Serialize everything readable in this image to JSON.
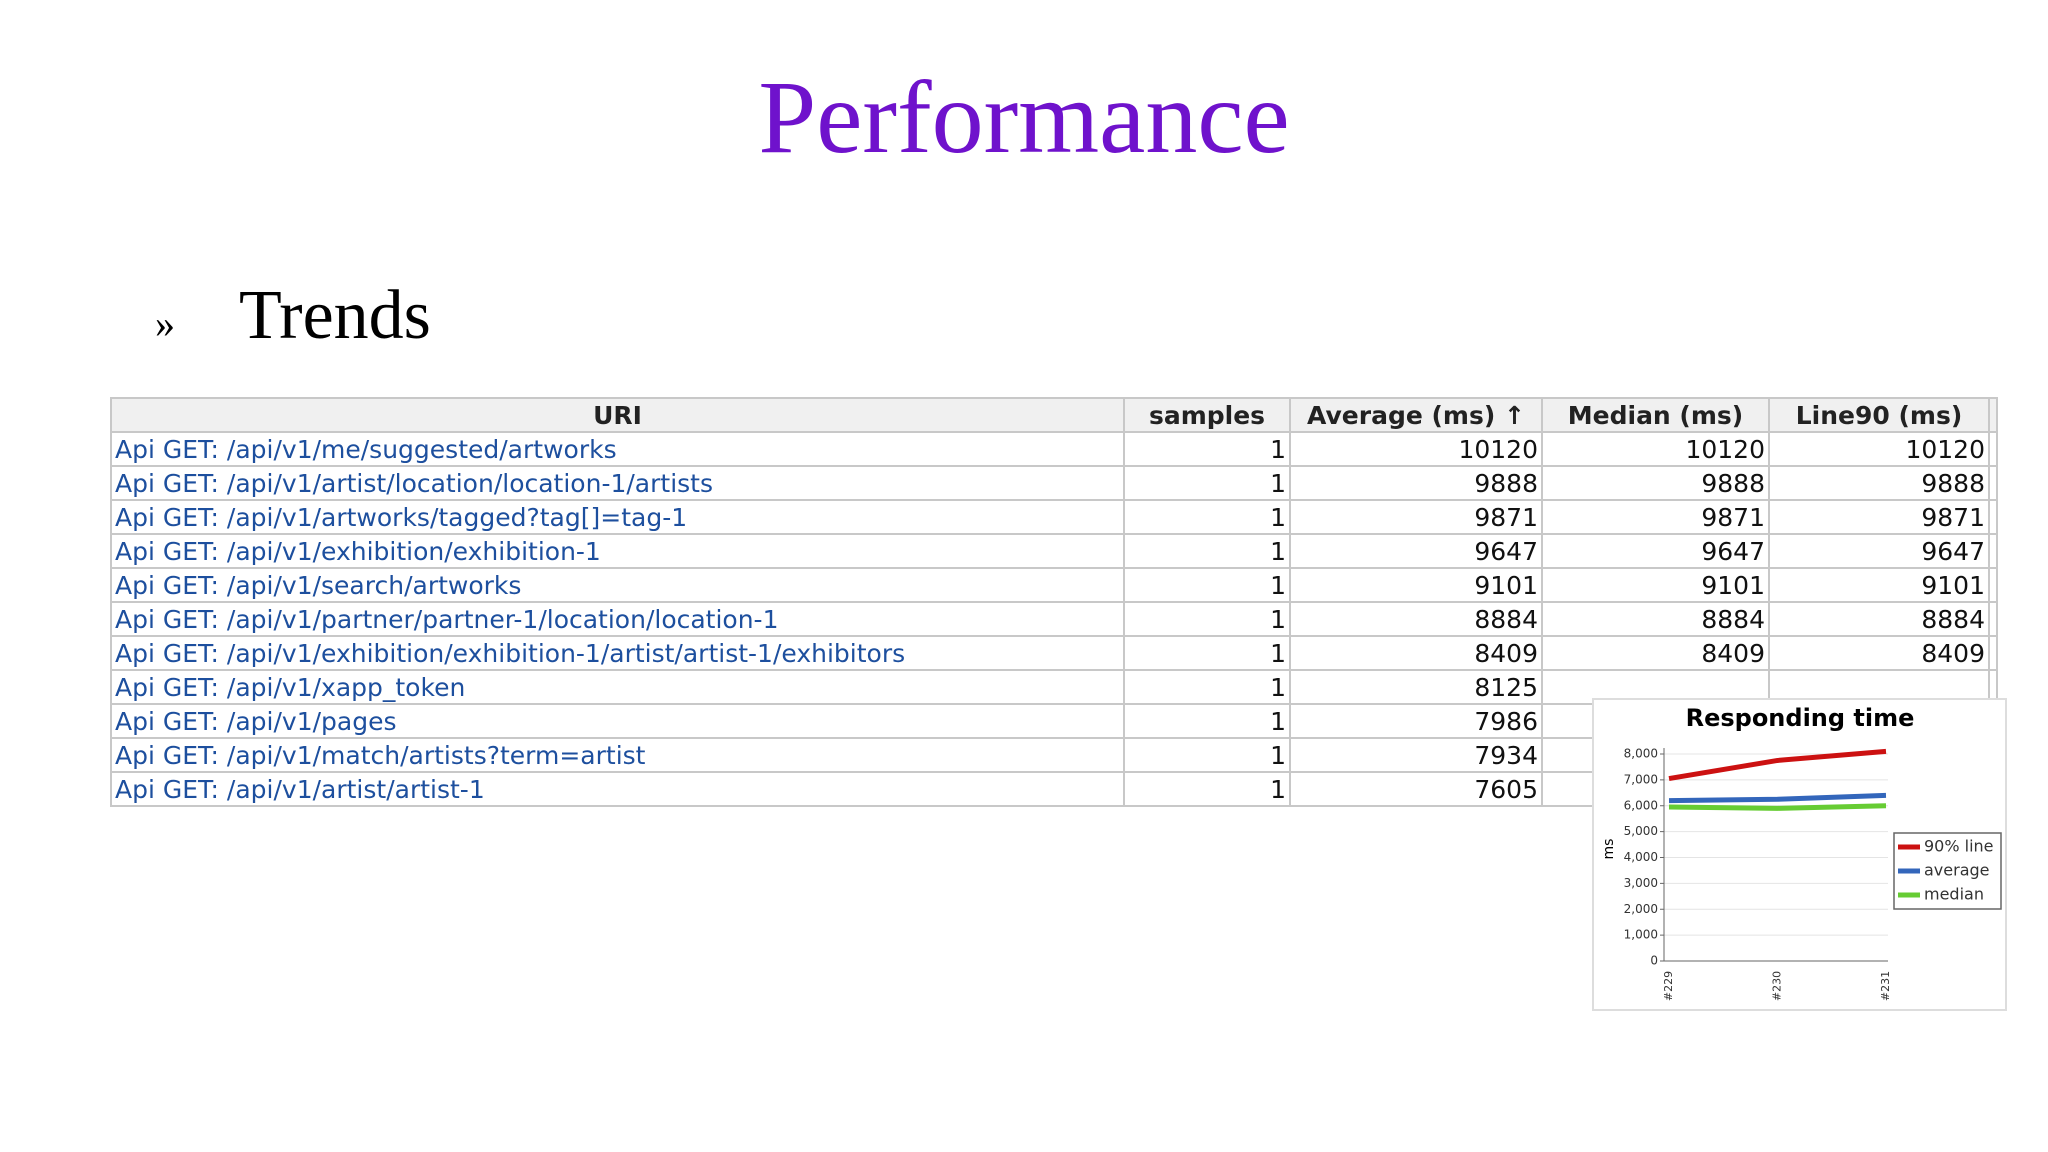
{
  "slide": {
    "title": "Performance",
    "bullet": "»",
    "heading": "Trends"
  },
  "table": {
    "headers": [
      "URI",
      "samples",
      "Average (ms) ↑",
      "Median (ms)",
      "Line90 (ms)"
    ],
    "rows": [
      [
        "Api GET: /api/v1/me/suggested/artworks",
        1,
        10120,
        10120,
        10120
      ],
      [
        "Api GET: /api/v1/artist/location/location-1/artists",
        1,
        9888,
        9888,
        9888
      ],
      [
        "Api GET: /api/v1/artworks/tagged?tag[]=tag-1",
        1,
        9871,
        9871,
        9871
      ],
      [
        "Api GET: /api/v1/exhibition/exhibition-1",
        1,
        9647,
        9647,
        9647
      ],
      [
        "Api GET: /api/v1/search/artworks",
        1,
        9101,
        9101,
        9101
      ],
      [
        "Api GET: /api/v1/partner/partner-1/location/location-1",
        1,
        8884,
        8884,
        8884
      ],
      [
        "Api GET: /api/v1/exhibition/exhibition-1/artist/artist-1/exhibitors",
        1,
        8409,
        8409,
        8409
      ],
      [
        "Api GET: /api/v1/xapp_token",
        1,
        8125
      ],
      [
        "Api GET: /api/v1/pages",
        1,
        7986
      ],
      [
        "Api GET: /api/v1/match/artists?term=artist",
        1,
        7934
      ],
      [
        "Api GET: /api/v1/artist/artist-1",
        1,
        7605
      ]
    ]
  },
  "chart_data": {
    "type": "line",
    "title": "Responding time",
    "y_label": "ms",
    "categories": [
      "#229",
      "#230",
      "#231"
    ],
    "ylim": [
      0,
      8000
    ],
    "yticks": [
      0,
      {
        "value": 1000,
        "label": "1,000"
      },
      {
        "value": 2000,
        "label": "2,000"
      },
      {
        "value": 3000,
        "label": "3,000"
      },
      {
        "value": 4000,
        "label": "4,000"
      },
      {
        "value": 5000,
        "label": "5,000"
      },
      {
        "value": 6000,
        "label": "6,000"
      },
      {
        "value": 7000,
        "label": "7,000"
      },
      {
        "value": 8000,
        "label": "8,000"
      }
    ],
    "grid": true,
    "legend": "right",
    "series": [
      {
        "name": "90% line",
        "color": "#cc1111",
        "values": [
          7050,
          7750,
          8100
        ]
      },
      {
        "name": "average",
        "color": "#3366bb",
        "values": [
          6200,
          6250,
          6400
        ]
      },
      {
        "name": "median",
        "color": "#66cc33",
        "values": [
          5950,
          5900,
          6000
        ]
      }
    ]
  }
}
